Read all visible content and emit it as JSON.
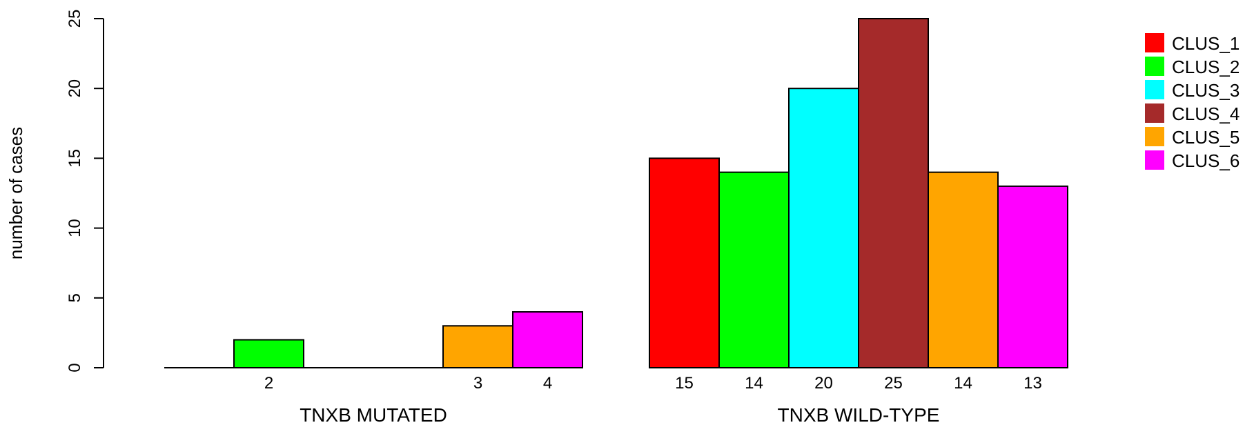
{
  "chart_data": {
    "type": "bar",
    "ylabel": "number of cases",
    "ylim": [
      0,
      25
    ],
    "yticks": [
      "0",
      "5",
      "10",
      "15",
      "20",
      "25"
    ],
    "groups": [
      "TNXB MUTATED",
      "TNXB WILD-TYPE"
    ],
    "series": [
      {
        "name": "CLUS_1",
        "color": "#ff0000",
        "values": [
          0,
          15
        ]
      },
      {
        "name": "CLUS_2",
        "color": "#00ff00",
        "values": [
          2,
          14
        ]
      },
      {
        "name": "CLUS_3",
        "color": "#00ffff",
        "values": [
          0,
          20
        ]
      },
      {
        "name": "CLUS_4",
        "color": "#a52a2a",
        "values": [
          0,
          25
        ]
      },
      {
        "name": "CLUS_5",
        "color": "#ffa500",
        "values": [
          3,
          14
        ]
      },
      {
        "name": "CLUS_6",
        "color": "#ff00ff",
        "values": [
          4,
          13
        ]
      }
    ],
    "bar_labels": [
      [
        "",
        "2",
        "",
        "",
        "3",
        "4"
      ],
      [
        "15",
        "14",
        "20",
        "25",
        "14",
        "13"
      ]
    ],
    "legend_position": "top-right",
    "grid": false
  }
}
